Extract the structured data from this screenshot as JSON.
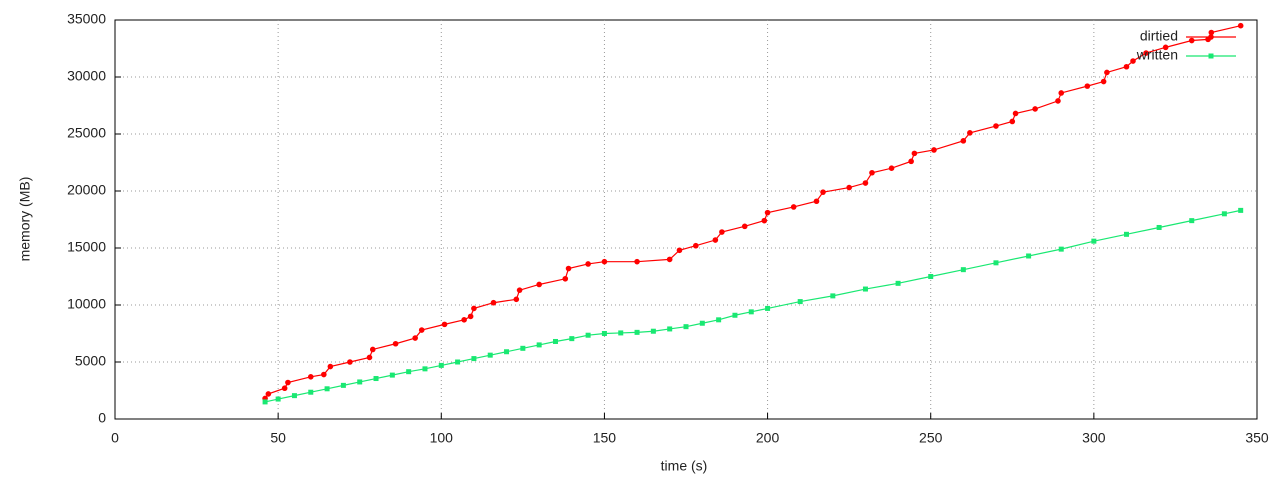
{
  "chart_data": {
    "type": "line",
    "x_label": "time (s)",
    "y_label": "memory (MB)",
    "xlim": [
      0,
      350
    ],
    "xticks": [
      0,
      50,
      100,
      150,
      200,
      250,
      300,
      350
    ],
    "ylim": [
      0,
      35000
    ],
    "yticks": [
      0,
      5000,
      10000,
      15000,
      20000,
      25000,
      30000,
      35000
    ],
    "grid": true,
    "legend": "top-right",
    "series": [
      {
        "name": "dirtied",
        "color": "#ff0000",
        "marker": "circle",
        "x": [
          46,
          47,
          52,
          53,
          60,
          64,
          66,
          72,
          78,
          79,
          86,
          92,
          94,
          101,
          107,
          109,
          110,
          116,
          123,
          124,
          130,
          138,
          139,
          145,
          150,
          160,
          170,
          173,
          178,
          184,
          186,
          193,
          199,
          200,
          208,
          215,
          217,
          225,
          230,
          232,
          238,
          244,
          245,
          251,
          260,
          262,
          270,
          275,
          276,
          282,
          289,
          290,
          298,
          303,
          304,
          310,
          312,
          316,
          322,
          330,
          335,
          336,
          345
        ],
        "values": [
          1800,
          2200,
          2700,
          3200,
          3700,
          3900,
          4600,
          5000,
          5400,
          6100,
          6600,
          7100,
          7800,
          8300,
          8700,
          9000,
          9700,
          10200,
          10500,
          11300,
          11800,
          12300,
          13200,
          13600,
          13800,
          13800,
          14000,
          14800,
          15200,
          15700,
          16400,
          16900,
          17400,
          18100,
          18600,
          19100,
          19900,
          20300,
          20700,
          21600,
          22000,
          22600,
          23300,
          23600,
          24400,
          25100,
          25700,
          26100,
          26800,
          27200,
          27900,
          28600,
          29200,
          29600,
          30400,
          30900,
          31400,
          32100,
          32600,
          33200,
          33300,
          33900,
          34500
        ]
      },
      {
        "name": "written",
        "color": "#19e872",
        "marker": "square",
        "x": [
          46,
          50,
          55,
          60,
          65,
          70,
          75,
          80,
          85,
          90,
          95,
          100,
          105,
          110,
          115,
          120,
          125,
          130,
          135,
          140,
          145,
          150,
          155,
          160,
          165,
          170,
          175,
          180,
          185,
          190,
          195,
          200,
          210,
          220,
          230,
          240,
          250,
          260,
          270,
          280,
          290,
          300,
          310,
          320,
          330,
          340,
          345
        ],
        "values": [
          1500,
          1750,
          2050,
          2350,
          2650,
          2950,
          3250,
          3550,
          3850,
          4150,
          4400,
          4700,
          5000,
          5300,
          5600,
          5900,
          6200,
          6500,
          6800,
          7050,
          7350,
          7500,
          7550,
          7600,
          7700,
          7900,
          8100,
          8400,
          8700,
          9100,
          9400,
          9700,
          10300,
          10800,
          11400,
          11900,
          12500,
          13100,
          13700,
          14300,
          14900,
          15600,
          16200,
          16800,
          17400,
          18000,
          18300
        ]
      }
    ]
  }
}
